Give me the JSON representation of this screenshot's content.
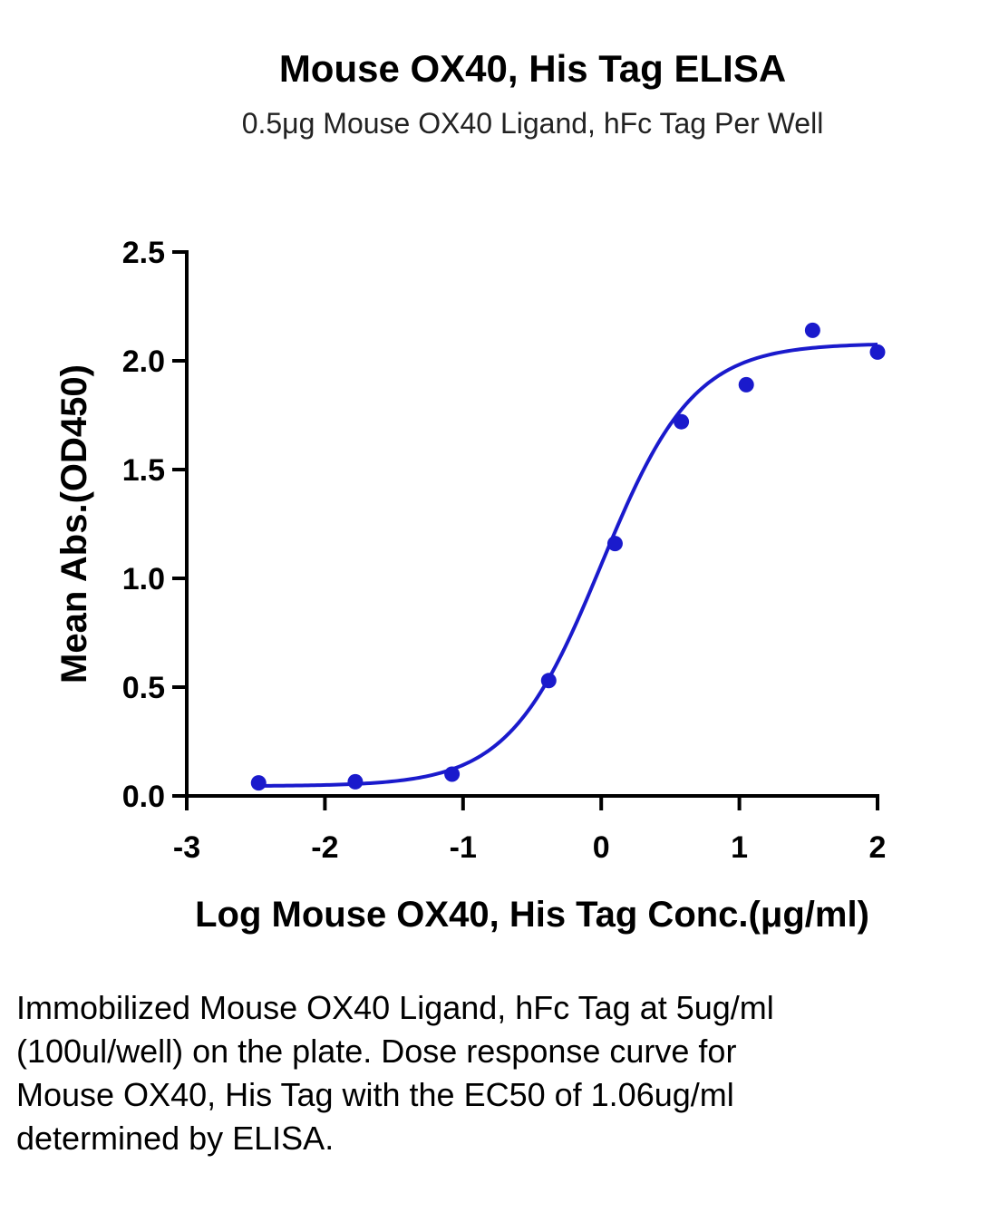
{
  "figure": {
    "title": "Mouse OX40, His Tag ELISA",
    "subtitle": "0.5μg Mouse OX40 Ligand, hFc Tag Per Well",
    "caption": "Immobilized Mouse OX40 Ligand, hFc Tag at 5ug/ml (100ul/well) on the plate. Dose response curve for Mouse OX40, His Tag with the EC50 of 1.06ug/ml determined by ELISA."
  },
  "chart_data": {
    "type": "scatter",
    "title": "Mouse OX40, His Tag ELISA",
    "subtitle": "0.5μg Mouse OX40 Ligand, hFc Tag Per Well",
    "xlabel": "Log Mouse OX40, His Tag Conc.(μg/ml)",
    "ylabel": "Mean Abs.(OD450)",
    "xlim": [
      -3,
      2
    ],
    "ylim": [
      0,
      2.5
    ],
    "x_ticks": [
      "-3",
      "-2",
      "-1",
      "0",
      "1",
      "2"
    ],
    "y_ticks": [
      "0.0",
      "0.5",
      "1.0",
      "1.5",
      "2.0",
      "2.5"
    ],
    "grid": false,
    "series": [
      {
        "color": "#1a1acc",
        "x": [
          -2.48,
          -1.78,
          -1.08,
          -0.38,
          0.1,
          0.58,
          1.05,
          1.53,
          2.0
        ],
        "y": [
          0.06,
          0.065,
          0.1,
          0.53,
          1.16,
          1.72,
          1.89,
          2.14,
          2.04
        ],
        "fit": {
          "model": "4PL",
          "bottom": 0.045,
          "top": 2.08,
          "log_ec50": 0.0,
          "hill_slope": 1.3
        }
      }
    ]
  }
}
